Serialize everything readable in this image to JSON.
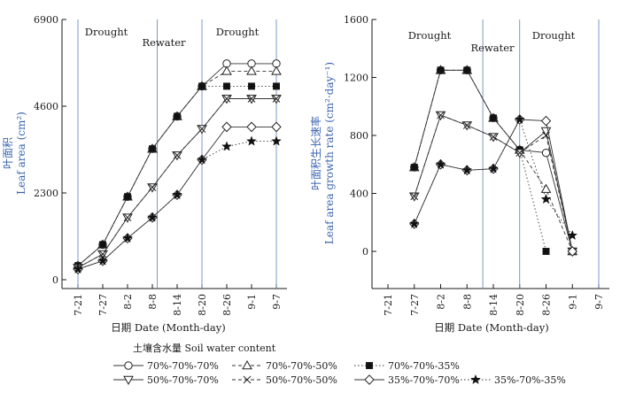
{
  "chart_data": [
    {
      "type": "line",
      "ylabel": "叶面积",
      "ylabel_en": "Leaf area (cm²)",
      "xlabel": "日期 Date (Month-day)",
      "categories": [
        "7-21",
        "7-27",
        "8-2",
        "8-8",
        "8-14",
        "8-20",
        "8-26",
        "9-1",
        "9-7"
      ],
      "yticks": [
        0,
        2300,
        4600,
        6900
      ],
      "ylim": [
        -150,
        6900
      ],
      "phase_labels": [
        "Drought",
        "Rewater",
        "Drought"
      ],
      "grid": false,
      "series": [
        {
          "name": "70%-70%-70%",
          "values": [
            370,
            930,
            2200,
            3470,
            4330,
            5130,
            5730,
            5730,
            5730
          ]
        },
        {
          "name": "70%-70%-50%",
          "values": [
            370,
            930,
            2200,
            3470,
            4330,
            5130,
            5530,
            5530,
            5530
          ]
        },
        {
          "name": "70%-70%-35%",
          "values": [
            370,
            930,
            2200,
            3470,
            4330,
            5130,
            5130,
            5130,
            5130
          ]
        },
        {
          "name": "50%-70%-70%",
          "values": [
            320,
            680,
            1650,
            2450,
            3300,
            4000,
            4800,
            4800,
            4800
          ]
        },
        {
          "name": "50%-70%-50%",
          "values": [
            320,
            680,
            1650,
            2450,
            3300,
            4000,
            4800,
            4800,
            4800
          ]
        },
        {
          "name": "35%-70%-70%",
          "values": [
            280,
            500,
            1100,
            1650,
            2250,
            3180,
            4050,
            4050,
            4050
          ]
        },
        {
          "name": "35%-70%-35%",
          "values": [
            280,
            500,
            1100,
            1650,
            2250,
            3180,
            3530,
            3670,
            3670
          ]
        }
      ]
    },
    {
      "type": "line",
      "ylabel": "叶面积生长速率",
      "ylabel_en": "Leaf area growth rate (cm²·day⁻¹)",
      "xlabel": "日期 Date (Month-day)",
      "categories": [
        "7-21",
        "7-27",
        "8-2",
        "8-8",
        "8-14",
        "8-20",
        "8-26",
        "9-1",
        "9-7"
      ],
      "yticks": [
        0,
        400,
        800,
        1200,
        1600
      ],
      "ylim": [
        -120,
        1600
      ],
      "phase_labels": [
        "Drought",
        "Rewater",
        "Drought"
      ],
      "grid": false,
      "series": [
        {
          "name": "70%-70%-70%",
          "values": [
            null,
            580,
            1250,
            1250,
            920,
            700,
            680,
            0,
            null
          ]
        },
        {
          "name": "70%-70%-50%",
          "values": [
            null,
            580,
            1250,
            1250,
            920,
            700,
            430,
            0,
            null
          ]
        },
        {
          "name": "70%-70%-35%",
          "values": [
            null,
            580,
            1250,
            1250,
            920,
            700,
            0,
            null,
            null
          ]
        },
        {
          "name": "50%-70%-70%",
          "values": [
            null,
            380,
            940,
            870,
            790,
            680,
            830,
            0,
            null
          ]
        },
        {
          "name": "50%-70%-50%",
          "values": [
            null,
            380,
            940,
            870,
            790,
            680,
            800,
            0,
            null
          ]
        },
        {
          "name": "35%-70%-70%",
          "values": [
            null,
            190,
            600,
            560,
            570,
            910,
            900,
            0,
            null
          ]
        },
        {
          "name": "35%-70%-35%",
          "values": [
            null,
            190,
            600,
            560,
            570,
            910,
            360,
            110,
            null
          ]
        }
      ]
    }
  ],
  "legend": {
    "title": "土壤含水量 Soil water content",
    "items": [
      {
        "label": "70%-70%-70%",
        "style": "open-circle-solid"
      },
      {
        "label": "70%-70%-50%",
        "style": "open-triangle-dashed"
      },
      {
        "label": "70%-70%-35%",
        "style": "filled-square-dotted"
      },
      {
        "label": "50%-70%-70%",
        "style": "open-down-triangle-solid"
      },
      {
        "label": "50%-70%-50%",
        "style": "cross-dashed"
      },
      {
        "label": "35%-70%-70%",
        "style": "open-diamond-solid"
      },
      {
        "label": "35%-70%-35%",
        "style": "filled-star-dotted"
      }
    ]
  },
  "colors": {
    "axis": "#1a1a1a",
    "divider": "#5a7fb5",
    "ylabel": "#3a63b0",
    "line": "#333333"
  }
}
